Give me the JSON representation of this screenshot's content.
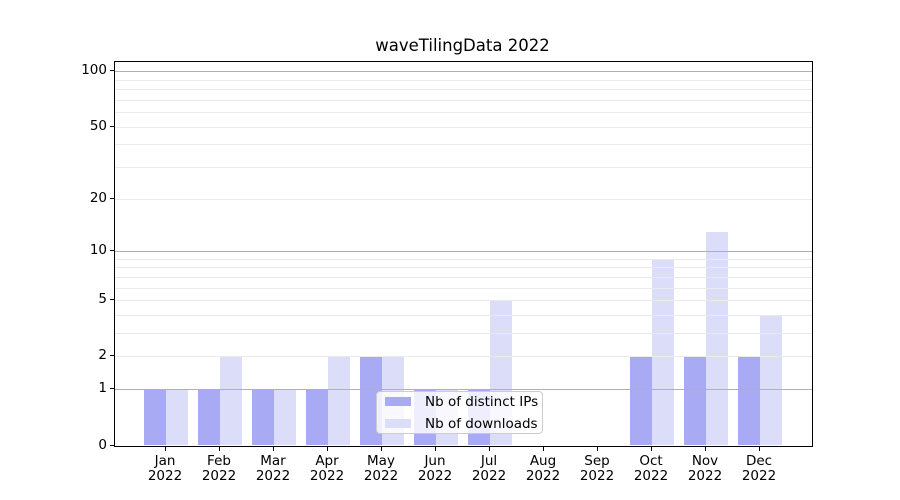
{
  "chart_data": {
    "type": "bar",
    "title": "waveTilingData 2022",
    "categories": [
      "Jan 2022",
      "Feb 2022",
      "Mar 2022",
      "Apr 2022",
      "May 2022",
      "Jun 2022",
      "Jul 2022",
      "Aug 2022",
      "Sep 2022",
      "Oct 2022",
      "Nov 2022",
      "Dec 2022"
    ],
    "series": [
      {
        "name": "Nb of distinct IPs",
        "color": "#a8abf4",
        "values": [
          1,
          1,
          1,
          1,
          2,
          1,
          1,
          0,
          0,
          2,
          2,
          2
        ]
      },
      {
        "name": "Nb of downloads",
        "color": "#dbddf9",
        "values": [
          1,
          2,
          1,
          2,
          2,
          1,
          5,
          0,
          0,
          9,
          13,
          4
        ]
      }
    ],
    "xlabel": "",
    "ylabel": "",
    "yscale": "log1p",
    "ylim": [
      0,
      112
    ],
    "yticks": [
      0,
      1,
      2,
      5,
      10,
      20,
      50,
      100
    ],
    "major_gridlines": [
      1,
      10,
      100
    ],
    "minor_gridlines": [
      2,
      3,
      4,
      5,
      6,
      7,
      8,
      9,
      20,
      30,
      40,
      50,
      60,
      70,
      80,
      90
    ],
    "grid": true,
    "legend_position": "lower center"
  },
  "colors": {
    "major_grid": "#b0b0b0",
    "minor_grid": "#eaeaea",
    "spine": "#000000",
    "text": "#000000"
  }
}
